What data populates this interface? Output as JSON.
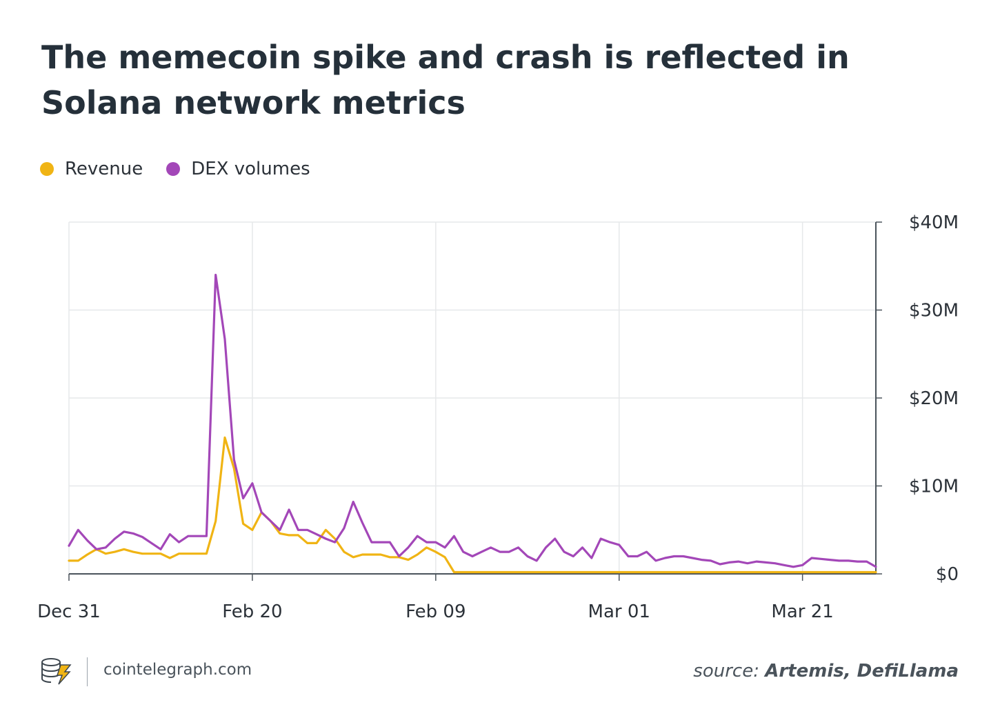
{
  "title": "The memecoin spike and crash is reflected in Solana network metrics",
  "legend": [
    {
      "label": "Revenue",
      "color": "#f0b414"
    },
    {
      "label": "DEX volumes",
      "color": "#a347b8"
    }
  ],
  "footer": {
    "site": "cointelegraph.com",
    "source_label": "source:",
    "source_names": "Artemis, DefiLlama"
  },
  "chart_data": {
    "type": "line",
    "x_tick_labels": [
      "Dec 31",
      "Feb 20",
      "Feb 09",
      "Mar 01",
      "Mar 21"
    ],
    "y_tick_labels": [
      "$0",
      "$10M",
      "$20M",
      "$30M",
      "$40M"
    ],
    "ylim": [
      0,
      40
    ],
    "y_unit": "$M",
    "y_axis_side": "right",
    "grid": true,
    "x": [
      0,
      1,
      2,
      3,
      4,
      5,
      6,
      7,
      8,
      9,
      10,
      11,
      12,
      13,
      14,
      15,
      16,
      17,
      18,
      19,
      20,
      21,
      22,
      23,
      24,
      25,
      26,
      27,
      28,
      29,
      30,
      31,
      32,
      33,
      34,
      35,
      36,
      37,
      38,
      39,
      40,
      41,
      42,
      43,
      44,
      45,
      46,
      47,
      48,
      49,
      50,
      51,
      52,
      53,
      54,
      55,
      56,
      57,
      58,
      59,
      60,
      61,
      62,
      63,
      64,
      65,
      66,
      67,
      68,
      69,
      70,
      71,
      72,
      73,
      74,
      75,
      76,
      77,
      78,
      79,
      80,
      81,
      82,
      83,
      84,
      85,
      86,
      87,
      88
    ],
    "x_tick_positions": [
      0,
      20,
      40,
      60,
      80
    ],
    "series": [
      {
        "name": "Revenue",
        "color": "#f0b414",
        "values": [
          1.5,
          1.5,
          2.2,
          2.8,
          2.3,
          2.5,
          2.8,
          2.5,
          2.3,
          2.3,
          2.3,
          1.8,
          2.3,
          2.3,
          2.3,
          2.3,
          6.0,
          15.5,
          12.0,
          5.7,
          5.0,
          7.0,
          6.0,
          4.6,
          4.4,
          4.4,
          3.5,
          3.5,
          5.0,
          4.0,
          2.5,
          1.9,
          2.2,
          2.2,
          2.2,
          1.9,
          1.9,
          1.6,
          2.2,
          3.0,
          2.5,
          1.9,
          0.2,
          0.2,
          0.2,
          0.2,
          0.2,
          0.2,
          0.2,
          0.2,
          0.2,
          0.2,
          0.2,
          0.2,
          0.2,
          0.2,
          0.2,
          0.2,
          0.2,
          0.2,
          0.2,
          0.2,
          0.2,
          0.2,
          0.2,
          0.2,
          0.2,
          0.2,
          0.2,
          0.2,
          0.2,
          0.2,
          0.2,
          0.2,
          0.2,
          0.2,
          0.2,
          0.2,
          0.2,
          0.2,
          0.2,
          0.2,
          0.2,
          0.2,
          0.2,
          0.2,
          0.2,
          0.2,
          0.2
        ]
      },
      {
        "name": "DEX volumes",
        "color": "#a347b8",
        "values": [
          3.2,
          5.0,
          3.8,
          2.8,
          3.0,
          4.0,
          4.8,
          4.6,
          4.2,
          3.5,
          2.8,
          4.5,
          3.6,
          4.3,
          4.3,
          4.3,
          34.0,
          26.7,
          13.0,
          8.6,
          10.3,
          7.0,
          6.0,
          5.0,
          7.3,
          5.0,
          5.0,
          4.5,
          4.0,
          3.6,
          5.2,
          8.2,
          5.8,
          3.6,
          3.6,
          3.6,
          2.0,
          3.0,
          4.3,
          3.6,
          3.6,
          3.0,
          4.3,
          2.5,
          2.0,
          2.5,
          3.0,
          2.5,
          2.5,
          3.0,
          2.0,
          1.5,
          3.0,
          4.0,
          2.5,
          2.0,
          3.0,
          1.8,
          4.0,
          3.6,
          3.3,
          2.0,
          2.0,
          2.5,
          1.5,
          1.8,
          2.0,
          2.0,
          1.8,
          1.6,
          1.5,
          1.1,
          1.3,
          1.4,
          1.2,
          1.4,
          1.3,
          1.2,
          1.0,
          0.8,
          1.0,
          1.8,
          1.7,
          1.6,
          1.5,
          1.5,
          1.4,
          1.4,
          0.8
        ]
      }
    ]
  }
}
